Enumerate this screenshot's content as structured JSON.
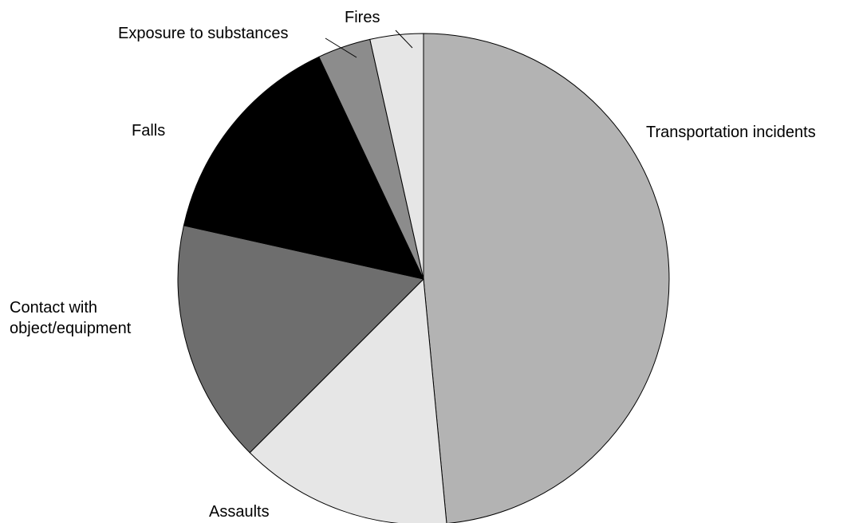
{
  "chart_data": {
    "type": "pie",
    "title": "",
    "start_angle_deg": 0,
    "direction": "clockwise",
    "slices": [
      {
        "label": "Transportation incidents",
        "value": 48.5,
        "color": "#b3b3b3"
      },
      {
        "label": "Assaults",
        "value": 14.0,
        "color": "#e6e6e6"
      },
      {
        "label": [
          "Contact with",
          "object/equipment"
        ],
        "value": 16.0,
        "color": "#6e6e6e"
      },
      {
        "label": "Falls",
        "value": 14.5,
        "color": "#000000"
      },
      {
        "label": "Exposure to substances",
        "value": 3.5,
        "color": "#8c8c8c"
      },
      {
        "label": "Fires",
        "value": 3.5,
        "color": "#e6e6e6"
      }
    ]
  }
}
